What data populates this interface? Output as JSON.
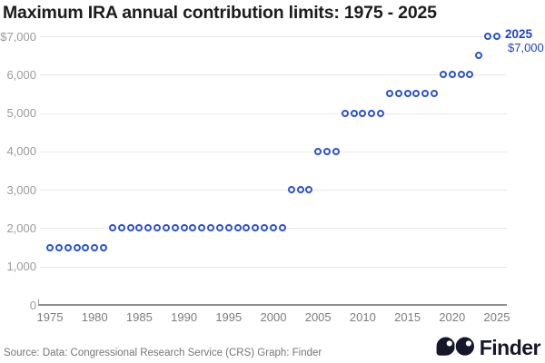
{
  "title": "Maximum IRA annual contribution limits: 1975 - 2025",
  "chart_data": {
    "type": "scatter",
    "title": "Maximum IRA annual contribution limits: 1975 - 2025",
    "xlabel": "",
    "ylabel": "",
    "grid": "horizontal",
    "legend": "none",
    "xlim": [
      1975,
      2025
    ],
    "ylim": [
      0,
      7000
    ],
    "x_tick_values": [
      1975,
      1980,
      1985,
      1990,
      1995,
      2000,
      2005,
      2010,
      2015,
      2020,
      2025
    ],
    "x_tick_labels": [
      "1975",
      "1980",
      "1985",
      "1990",
      "1995",
      "2000",
      "2005",
      "2010",
      "2015",
      "2020",
      "2025"
    ],
    "y_tick_values": [
      7000,
      6000,
      5000,
      4000,
      3000,
      2000,
      1000,
      0
    ],
    "y_tick_labels": [
      "$7,000",
      "6,000",
      "5,000",
      "4,000",
      "3,000",
      "2,000",
      "1,000",
      "0"
    ],
    "points": [
      [
        1975,
        1500
      ],
      [
        1976,
        1500
      ],
      [
        1977,
        1500
      ],
      [
        1978,
        1500
      ],
      [
        1979,
        1500
      ],
      [
        1980,
        1500
      ],
      [
        1981,
        1500
      ],
      [
        1982,
        2000
      ],
      [
        1983,
        2000
      ],
      [
        1984,
        2000
      ],
      [
        1985,
        2000
      ],
      [
        1986,
        2000
      ],
      [
        1987,
        2000
      ],
      [
        1988,
        2000
      ],
      [
        1989,
        2000
      ],
      [
        1990,
        2000
      ],
      [
        1991,
        2000
      ],
      [
        1992,
        2000
      ],
      [
        1993,
        2000
      ],
      [
        1994,
        2000
      ],
      [
        1995,
        2000
      ],
      [
        1996,
        2000
      ],
      [
        1997,
        2000
      ],
      [
        1998,
        2000
      ],
      [
        1999,
        2000
      ],
      [
        2000,
        2000
      ],
      [
        2001,
        2000
      ],
      [
        2002,
        3000
      ],
      [
        2003,
        3000
      ],
      [
        2004,
        3000
      ],
      [
        2005,
        4000
      ],
      [
        2006,
        4000
      ],
      [
        2007,
        4000
      ],
      [
        2008,
        5000
      ],
      [
        2009,
        5000
      ],
      [
        2010,
        5000
      ],
      [
        2011,
        5000
      ],
      [
        2012,
        5000
      ],
      [
        2013,
        5500
      ],
      [
        2014,
        5500
      ],
      [
        2015,
        5500
      ],
      [
        2016,
        5500
      ],
      [
        2017,
        5500
      ],
      [
        2018,
        5500
      ],
      [
        2019,
        6000
      ],
      [
        2020,
        6000
      ],
      [
        2021,
        6000
      ],
      [
        2022,
        6000
      ],
      [
        2023,
        6500
      ],
      [
        2024,
        7000
      ],
      [
        2025,
        7000
      ]
    ],
    "annotation": {
      "label": "2025",
      "value": "$7,000"
    },
    "colors": {
      "point": "#2b51d8",
      "annotation": "#1f3fd0",
      "gridline": "#e8e8e8",
      "axis": "#8f8f8f",
      "y_label": "#9a9a9a",
      "x_label": "#7d7d7d",
      "title": "#1c1c1c"
    }
  },
  "footer": {
    "source": "Source: Data: Congressional Research Service (CRS) Graph: Finder",
    "brand": "Finder"
  }
}
